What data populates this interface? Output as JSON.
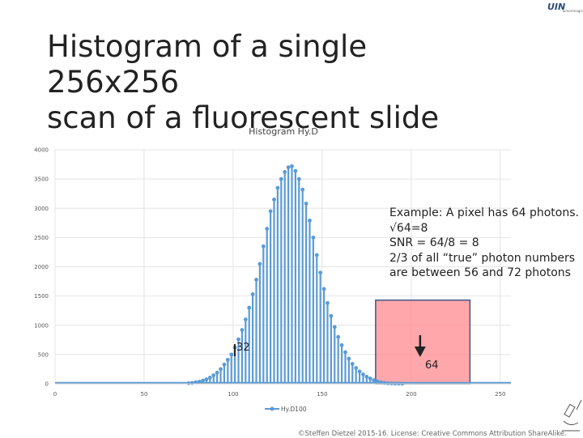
{
  "slide": {
    "title_line1": "Histogram of a single 256x256",
    "title_line2": "scan of a fluorescent slide",
    "copyright": "©Steffen Dietzel 2015-16. License: Creative  Commons Attribution ShareAlike."
  },
  "logo": {
    "main": "UIN",
    "sub": "Tumorimaging"
  },
  "annotation": {
    "lines": [
      "Example: A pixel has 64 photons.",
      "√64=8",
      "SNR = 64/8 = 8",
      "2/3 of all “true” photon numbers",
      "are between 56 and 72 photons"
    ],
    "marker_32": "32",
    "marker_64": "64"
  },
  "colors": {
    "series": "#5b9bd5",
    "highlight_fill": "#ff8a8f",
    "highlight_stroke": "#3a5a8a",
    "arrow": "#222222"
  },
  "chart_data": {
    "type": "bar",
    "title": "Histogram Hy.D",
    "xlim": [
      0,
      256
    ],
    "ylim": [
      0,
      4000
    ],
    "xticks": [
      0,
      50,
      100,
      150,
      200,
      250
    ],
    "yticks": [
      0,
      500,
      1000,
      1500,
      2000,
      2500,
      3000,
      3500,
      4000
    ],
    "grid": true,
    "legend_position": "bottom",
    "series": [
      {
        "name": "Hy.D100",
        "points": [
          [
            75,
            10
          ],
          [
            77,
            15
          ],
          [
            79,
            25
          ],
          [
            81,
            35
          ],
          [
            83,
            55
          ],
          [
            85,
            75
          ],
          [
            87,
            105
          ],
          [
            89,
            145
          ],
          [
            91,
            190
          ],
          [
            93,
            250
          ],
          [
            95,
            330
          ],
          [
            97,
            410
          ],
          [
            99,
            500
          ],
          [
            101,
            620
          ],
          [
            103,
            760
          ],
          [
            105,
            920
          ],
          [
            107,
            1100
          ],
          [
            109,
            1300
          ],
          [
            111,
            1530
          ],
          [
            113,
            1780
          ],
          [
            115,
            2050
          ],
          [
            117,
            2350
          ],
          [
            119,
            2650
          ],
          [
            121,
            2950
          ],
          [
            123,
            3150
          ],
          [
            125,
            3350
          ],
          [
            127,
            3500
          ],
          [
            129,
            3620
          ],
          [
            131,
            3700
          ],
          [
            133,
            3720
          ],
          [
            135,
            3640
          ],
          [
            137,
            3500
          ],
          [
            139,
            3320
          ],
          [
            141,
            3080
          ],
          [
            143,
            2790
          ],
          [
            145,
            2500
          ],
          [
            147,
            2200
          ],
          [
            149,
            1900
          ],
          [
            151,
            1620
          ],
          [
            153,
            1380
          ],
          [
            155,
            1160
          ],
          [
            157,
            970
          ],
          [
            159,
            800
          ],
          [
            161,
            660
          ],
          [
            163,
            540
          ],
          [
            165,
            430
          ],
          [
            167,
            340
          ],
          [
            169,
            270
          ],
          [
            171,
            210
          ],
          [
            173,
            160
          ],
          [
            175,
            120
          ],
          [
            177,
            90
          ],
          [
            179,
            60
          ],
          [
            181,
            40
          ],
          [
            183,
            25
          ],
          [
            185,
            15
          ],
          [
            187,
            8
          ],
          [
            189,
            5
          ],
          [
            191,
            3
          ],
          [
            193,
            2
          ],
          [
            195,
            1
          ]
        ]
      }
    ],
    "highlight_range": [
      180,
      233
    ],
    "highlight_top": 1430,
    "marker_x": [
      100,
      205
    ]
  }
}
